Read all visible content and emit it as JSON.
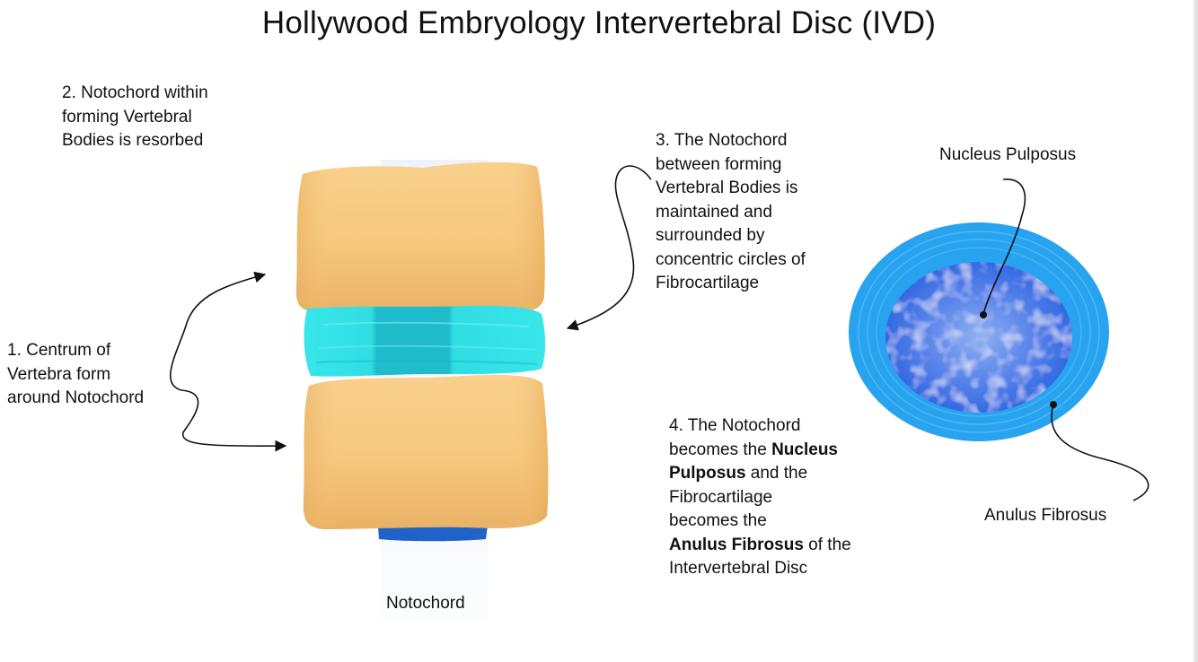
{
  "title": "Hollywood Embryology Intervertebral Disc (IVD)",
  "labels": {
    "step1": [
      "1. Centrum of",
      "Vertebra form",
      "around Notochord"
    ],
    "step2": [
      "2. Notochord within",
      "forming Vertebral",
      "Bodies is resorbed"
    ],
    "step3": [
      "3. The Notochord",
      "between forming",
      "Vertebral Bodies is",
      "maintained and",
      "surrounded by",
      "concentric circles of",
      "Fibrocartilage"
    ],
    "step4": {
      "line1": "4. The Notochord",
      "line2_pre": "becomes the ",
      "line2_bold": "Nucleus",
      "line3_bold": "Pulposus",
      "line3_post": " and the",
      "line4": "Fibrocartilage",
      "line5": "becomes the",
      "line6_bold": "Anulus Fibrosus",
      "line6_post": " of the",
      "line7": "Intervertebral Disc"
    },
    "notochord": "Notochord",
    "nucleus_pulposus": "Nucleus Pulposus",
    "anulus_fibrosus": "Anulus Fibrosus"
  },
  "colors": {
    "vertebra": "#f6c77e",
    "vertebra_shade": "#e7ae5f",
    "disc": "#2fdfe4",
    "disc_dark": "#1bb9c9",
    "notochord": "#1f63c8",
    "anulus": "#27a3f0",
    "nucleus": "#2a69e6",
    "nucleus_light": "#a9c2f3"
  }
}
